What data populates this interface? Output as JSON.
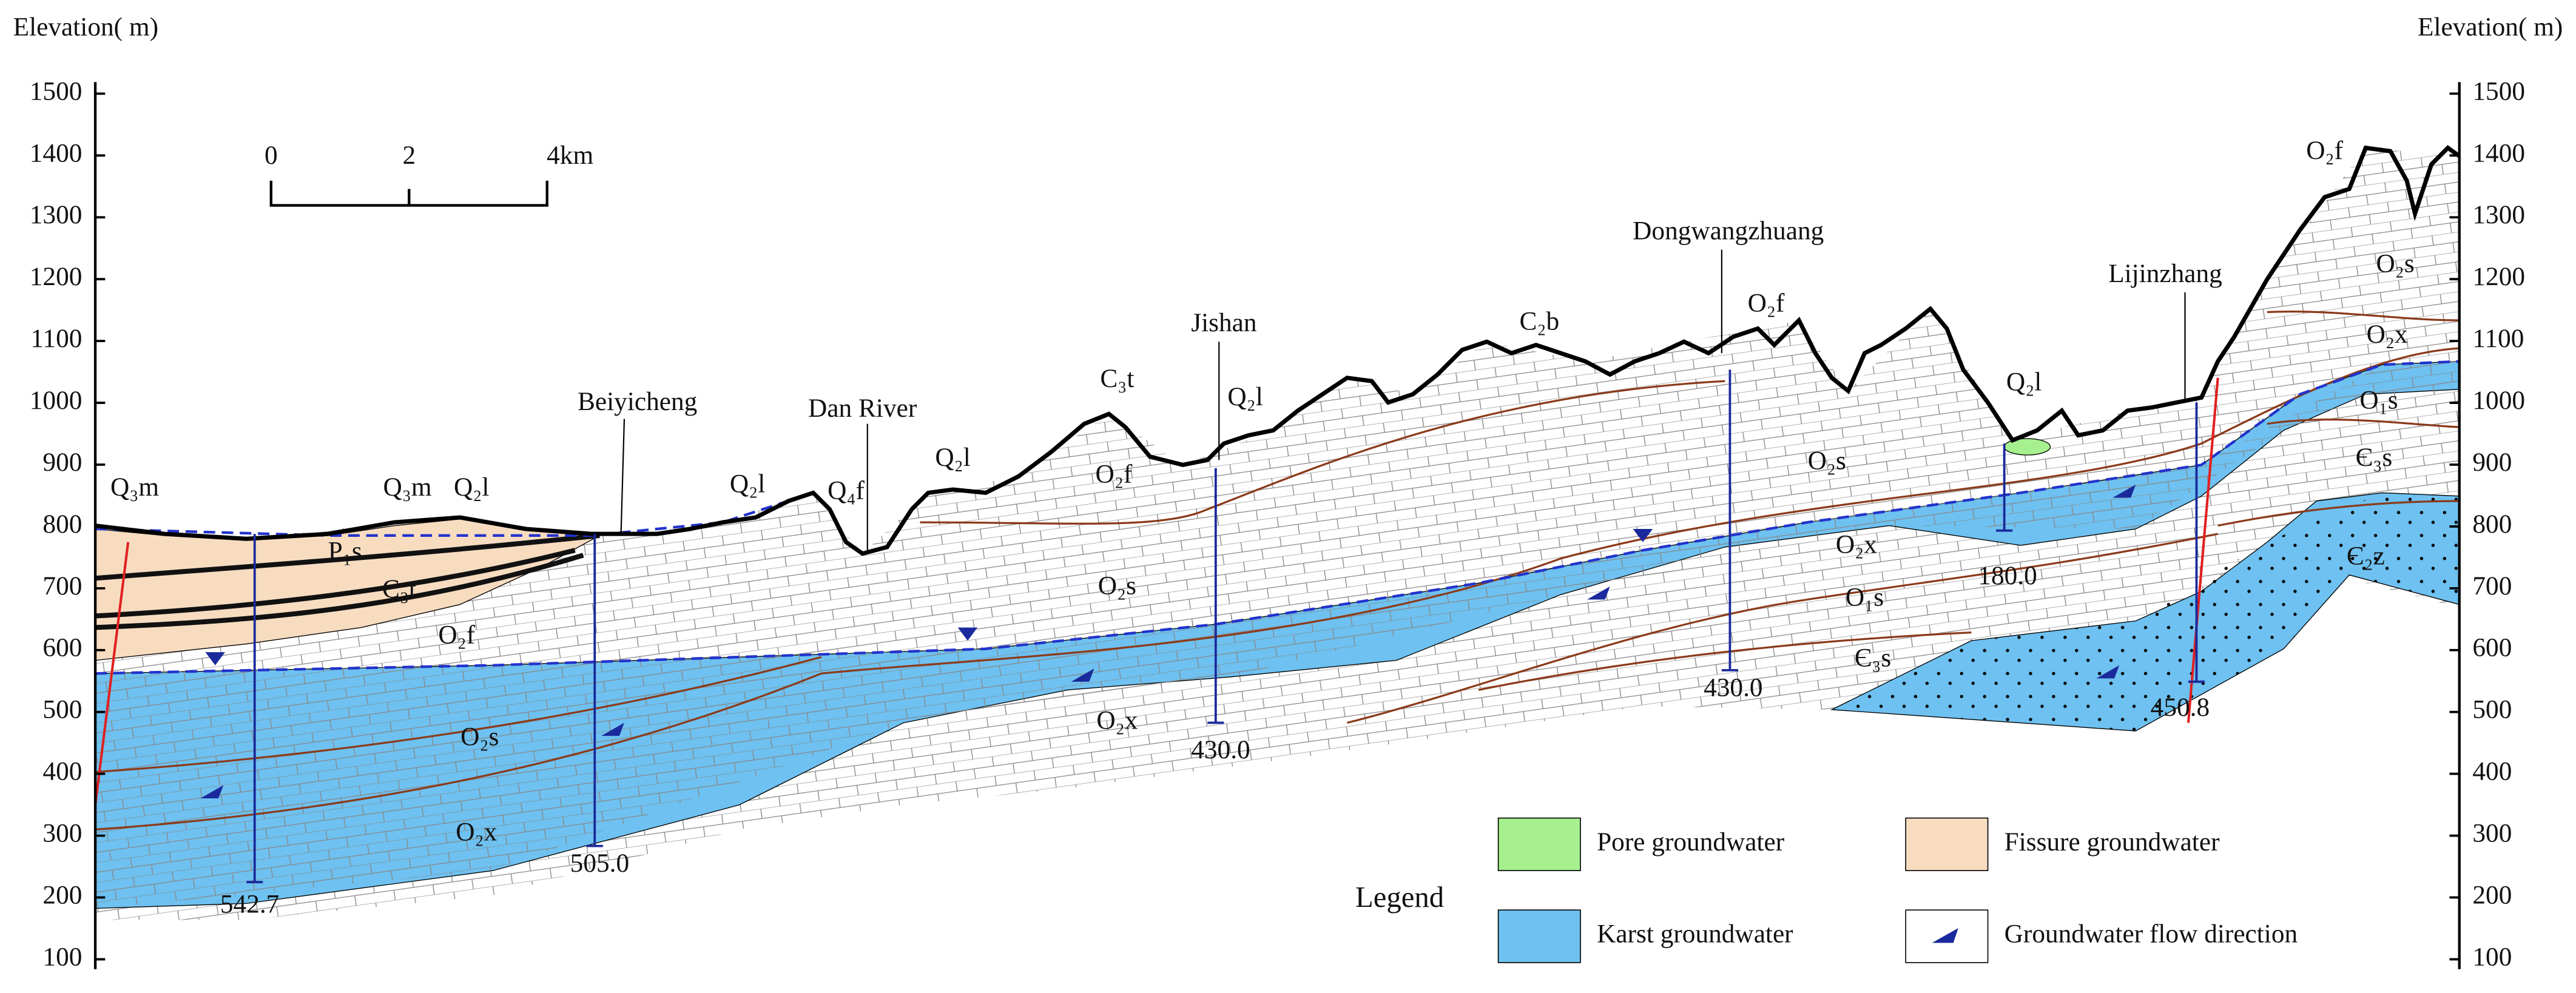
{
  "axis": {
    "label_left": "Elevation( m)",
    "label_right": "Elevation( m)",
    "ticks": [
      100,
      200,
      300,
      400,
      500,
      600,
      700,
      800,
      900,
      1000,
      1100,
      1200,
      1300,
      1400,
      1500
    ]
  },
  "scale_bar": {
    "labels": [
      "0",
      "2",
      "4km"
    ]
  },
  "places": [
    "Beiyicheng",
    "Dan River",
    "Jishan",
    "Dongwangzhuang",
    "Lijinzhang"
  ],
  "formations": [
    "Q₃m",
    "Q₃m",
    "Q₂l",
    "Q₂l",
    "Q₄f",
    "Q₂l",
    "C₃t",
    "Q₂l",
    "C₂b",
    "O₂f",
    "Q₂l",
    "O₂f",
    "O₂s",
    "O₂x",
    "O₁s",
    "Є₃s",
    "Є₂z",
    "P₁s",
    "C₃t",
    "O₂f",
    "O₂f",
    "O₂s",
    "O₂s",
    "O₂x",
    "O₁s",
    "Є₃s",
    "O₂s",
    "O₂x",
    "O₂x"
  ],
  "wells": [
    "542.7",
    "505.0",
    "430.0",
    "430.0",
    "180.0",
    "450.8"
  ],
  "legend": {
    "title": "Legend",
    "items": [
      "Pore groundwater",
      "Fissure groundwater",
      "Karst groundwater",
      "Groundwater flow direction"
    ]
  }
}
